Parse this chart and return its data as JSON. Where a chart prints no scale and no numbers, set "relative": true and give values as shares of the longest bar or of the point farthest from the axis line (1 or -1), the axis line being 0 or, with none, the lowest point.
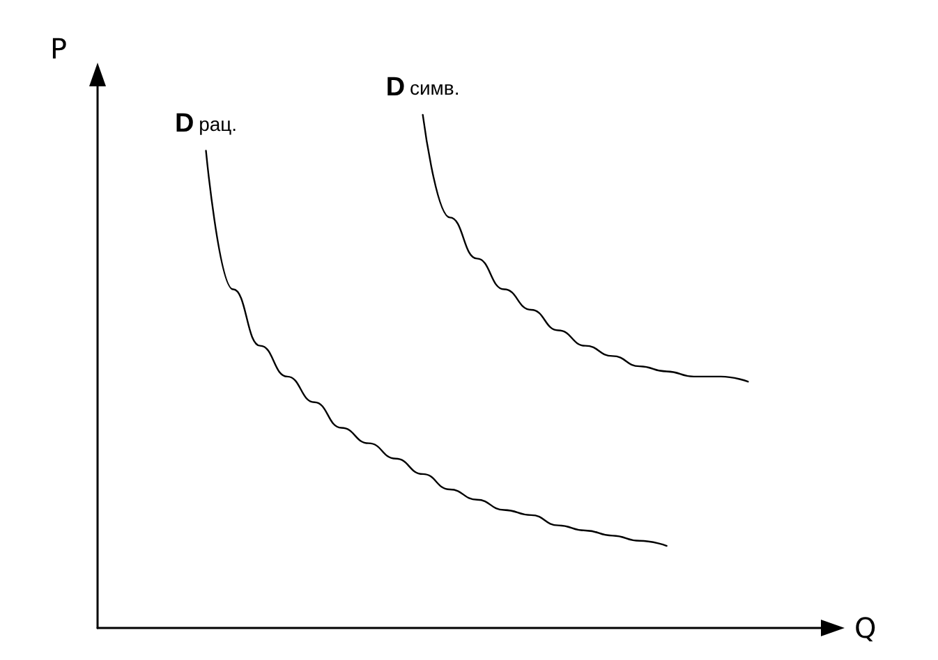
{
  "chart_data": {
    "type": "line",
    "relative": true,
    "xlabel": "Q",
    "ylabel": "P",
    "grid": false,
    "legend": false,
    "tick_labels": false,
    "marker": "none",
    "line_style": "solid",
    "categories": [
      null,
      null,
      null,
      null,
      null,
      null,
      null,
      null,
      null,
      null,
      null,
      null,
      null,
      null,
      null,
      null,
      null,
      null,
      null,
      null,
      null,
      null,
      null,
      null,
      null,
      null,
      null,
      null
    ],
    "series": [
      {
        "name": "D рац.",
        "color": "#000000",
        "values": [
          null,
          null,
          null,
          null,
          0.93,
          0.66,
          0.55,
          0.49,
          0.44,
          0.39,
          0.36,
          0.33,
          0.3,
          0.27,
          0.25,
          0.23,
          0.22,
          0.2,
          0.19,
          0.18,
          0.17,
          0.16,
          null,
          null,
          null,
          null,
          null,
          null
        ]
      },
      {
        "name": "D симв.",
        "color": "#000000",
        "values": [
          null,
          null,
          null,
          null,
          null,
          null,
          null,
          null,
          null,
          null,
          null,
          null,
          1.0,
          0.8,
          0.72,
          0.66,
          0.62,
          0.58,
          0.55,
          0.53,
          0.51,
          0.5,
          0.49,
          0.49,
          0.48,
          null,
          null,
          null
        ]
      }
    ]
  }
}
